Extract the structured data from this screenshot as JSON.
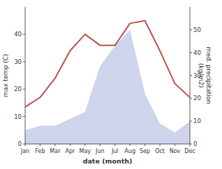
{
  "chart_data": {
    "type": "line",
    "categories": [
      "Jan",
      "Feb",
      "Mar",
      "Apr",
      "May",
      "Jun",
      "Jul",
      "Aug",
      "Sep",
      "Oct",
      "Nov",
      "Dec"
    ],
    "series": [
      {
        "type": "area",
        "axis": "y2",
        "color": "#c5cce8",
        "values": [
          6,
          8,
          8,
          11,
          14,
          34,
          43,
          50,
          22,
          9,
          5,
          10
        ]
      },
      {
        "type": "line",
        "color": "#c0504d",
        "values": [
          13.5,
          17,
          24,
          34,
          40,
          36,
          36,
          44,
          45,
          34,
          22,
          17
        ]
      }
    ],
    "xlabel": "date (month)",
    "ylabel": "max temp (C)",
    "y2label": "med. precipitation\n(kg/m2)",
    "ylim": [
      0,
      50
    ],
    "yticks": [
      0,
      10,
      20,
      30,
      40
    ],
    "y2lim": [
      0,
      60
    ],
    "y2ticks": [
      0,
      10,
      20,
      30,
      40,
      50
    ],
    "grid": false
  }
}
